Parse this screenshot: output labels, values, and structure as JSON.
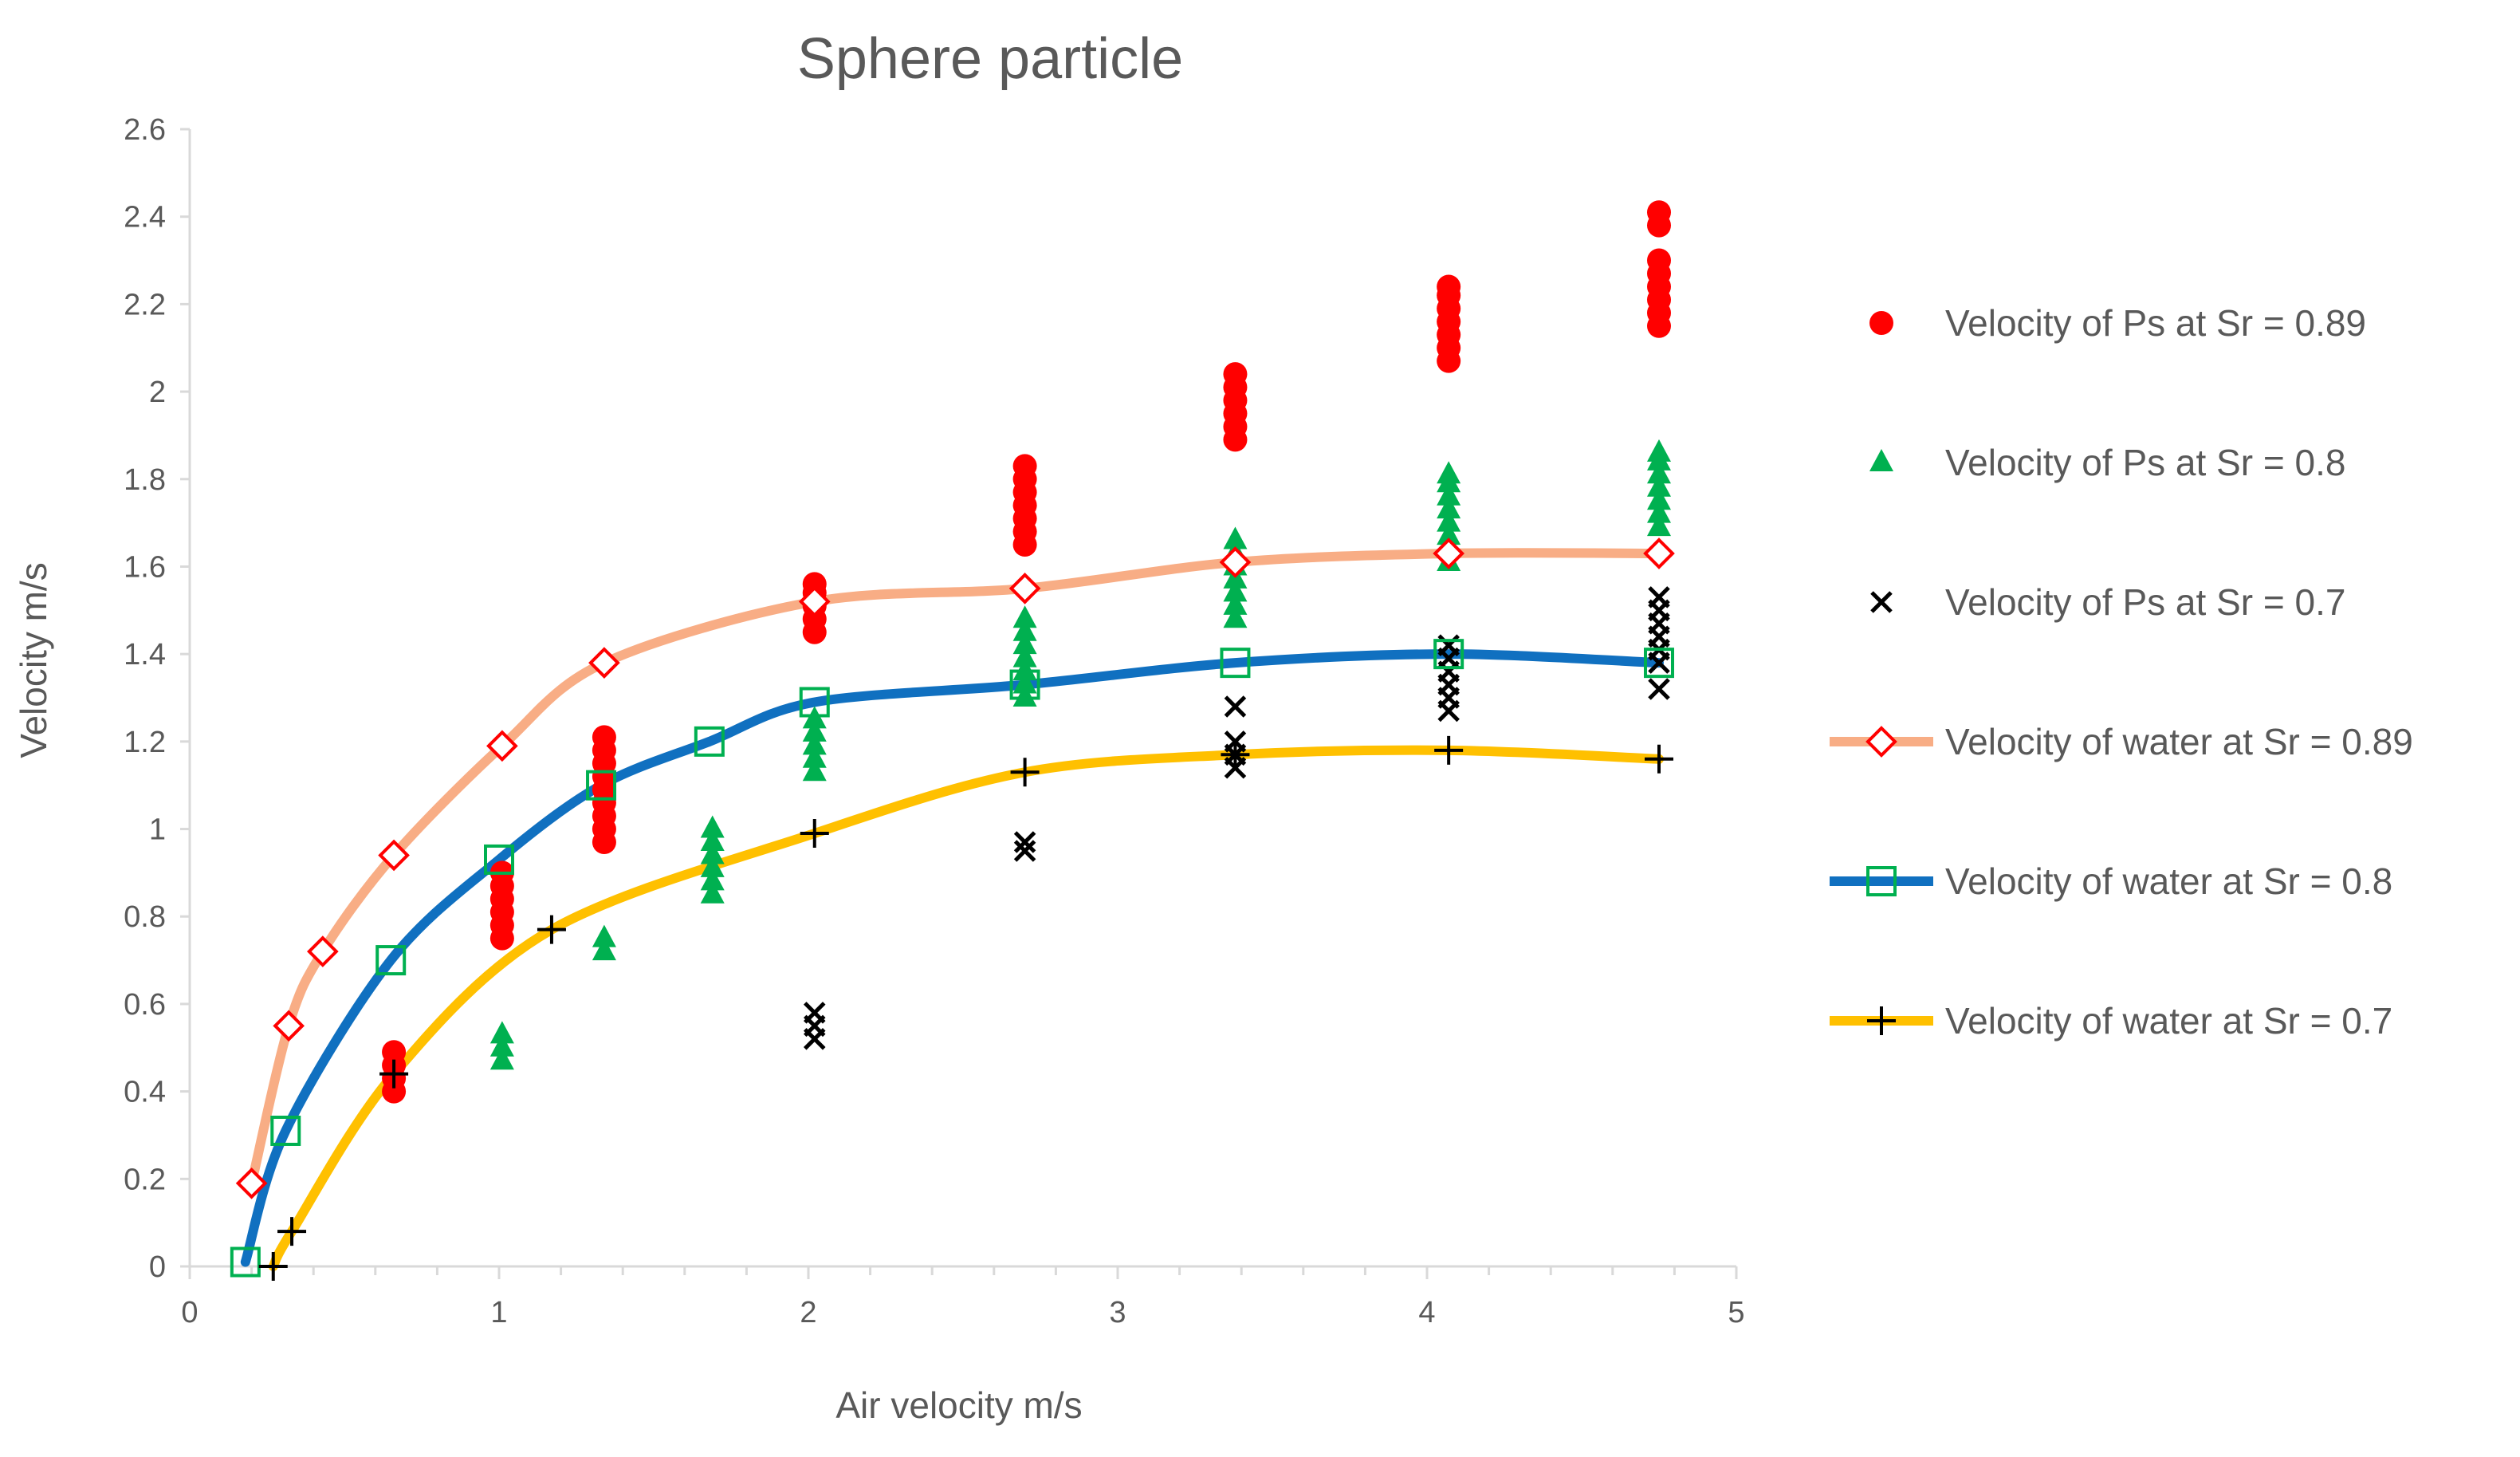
{
  "chart_data": {
    "type": "scatter",
    "title": "Sphere particle",
    "xlabel": "Air velocity m/s",
    "ylabel": "Velocity m/s",
    "xlim": [
      0,
      5
    ],
    "ylim": [
      0,
      2.6
    ],
    "x_ticks": [
      0,
      1,
      2,
      3,
      4,
      5
    ],
    "x_tick_labels": [
      "0",
      "1",
      "2",
      "3",
      "4",
      "5"
    ],
    "y_ticks": [
      0,
      0.2,
      0.4,
      0.6,
      0.8,
      1,
      1.2,
      1.4,
      1.6,
      1.8,
      2,
      2.2,
      2.4,
      2.6
    ],
    "y_tick_labels": [
      "0",
      "0.2",
      "0.4",
      "0.6",
      "0.8",
      "1",
      "1.2",
      "1.4",
      "1.6",
      "1.8",
      "2",
      "2.2",
      "2.4",
      "2.6"
    ],
    "grid": false,
    "legend_position": "right",
    "series": [
      {
        "name": "Velocity of Ps at Sr = 0.89",
        "kind": "scatter",
        "marker": "circle",
        "color": "#ff0000",
        "points": [
          {
            "x": 0.66,
            "y": [
              0.4,
              0.43,
              0.46,
              0.49
            ]
          },
          {
            "x": 1.01,
            "y": [
              0.75,
              0.78,
              0.81,
              0.84,
              0.87,
              0.9
            ]
          },
          {
            "x": 1.34,
            "y": [
              0.97,
              1.0,
              1.03,
              1.06,
              1.09,
              1.12,
              1.15,
              1.18,
              1.21
            ]
          },
          {
            "x": 2.02,
            "y": [
              1.45,
              1.48,
              1.51,
              1.54,
              1.56
            ]
          },
          {
            "x": 2.7,
            "y": [
              1.65,
              1.68,
              1.71,
              1.74,
              1.77,
              1.8,
              1.83
            ]
          },
          {
            "x": 3.38,
            "y": [
              1.89,
              1.92,
              1.95,
              1.98,
              2.01,
              2.04
            ]
          },
          {
            "x": 4.07,
            "y": [
              2.07,
              2.1,
              2.13,
              2.16,
              2.19,
              2.22,
              2.24
            ]
          },
          {
            "x": 4.75,
            "y": [
              2.15,
              2.18,
              2.21,
              2.24,
              2.27,
              2.3,
              2.38,
              2.41
            ]
          }
        ]
      },
      {
        "name": "Velocity of Ps at Sr = 0.8",
        "kind": "scatter",
        "marker": "triangle",
        "color": "#00b050",
        "points": [
          {
            "x": 1.01,
            "y": [
              0.47,
              0.5,
              0.53
            ]
          },
          {
            "x": 1.34,
            "y": [
              0.72,
              0.75
            ]
          },
          {
            "x": 1.69,
            "y": [
              0.85,
              0.88,
              0.91,
              0.94,
              0.97,
              1.0
            ]
          },
          {
            "x": 2.02,
            "y": [
              1.13,
              1.16,
              1.19,
              1.22,
              1.25
            ]
          },
          {
            "x": 2.7,
            "y": [
              1.3,
              1.33,
              1.36,
              1.39,
              1.42,
              1.45,
              1.48
            ]
          },
          {
            "x": 3.38,
            "y": [
              1.48,
              1.51,
              1.54,
              1.57,
              1.6,
              1.63,
              1.66
            ]
          },
          {
            "x": 4.07,
            "y": [
              1.61,
              1.64,
              1.67,
              1.7,
              1.73,
              1.76,
              1.79,
              1.81
            ]
          },
          {
            "x": 4.75,
            "y": [
              1.69,
              1.72,
              1.75,
              1.78,
              1.81,
              1.84,
              1.86
            ]
          }
        ]
      },
      {
        "name": "Velocity of Ps at Sr = 0.7",
        "kind": "scatter",
        "marker": "x",
        "color": "#000000",
        "points": [
          {
            "x": 2.02,
            "y": [
              0.52,
              0.55,
              0.58
            ]
          },
          {
            "x": 2.7,
            "y": [
              0.95,
              0.97
            ]
          },
          {
            "x": 3.38,
            "y": [
              1.14,
              1.17,
              1.2,
              1.28
            ]
          },
          {
            "x": 4.07,
            "y": [
              1.27,
              1.3,
              1.33,
              1.36,
              1.39,
              1.42
            ]
          },
          {
            "x": 4.75,
            "y": [
              1.32,
              1.38,
              1.41,
              1.44,
              1.47,
              1.5,
              1.53
            ]
          }
        ]
      },
      {
        "name": "Velocity of water at Sr = 0.89",
        "kind": "line",
        "marker": "diamond",
        "color": "#f8ad85",
        "marker_color": "#ff0000",
        "x": [
          0.2,
          0.32,
          0.43,
          0.66,
          1.01,
          1.34,
          2.02,
          2.7,
          3.38,
          4.07,
          4.75
        ],
        "y": [
          0.19,
          0.55,
          0.72,
          0.94,
          1.19,
          1.38,
          1.52,
          1.55,
          1.61,
          1.63,
          1.63
        ]
      },
      {
        "name": "Velocity of water at Sr = 0.8",
        "kind": "line",
        "marker": "square",
        "color": "#1070c0",
        "marker_color": "#00b050",
        "x": [
          0.18,
          0.31,
          0.65,
          1.0,
          1.33,
          1.68,
          2.02,
          2.7,
          3.38,
          4.07,
          4.75
        ],
        "y": [
          0.01,
          0.31,
          0.7,
          0.93,
          1.1,
          1.2,
          1.29,
          1.33,
          1.38,
          1.4,
          1.38
        ]
      },
      {
        "name": "Velocity of water at Sr = 0.7",
        "kind": "line",
        "marker": "plus",
        "color": "#ffc000",
        "marker_color": "#000000",
        "x": [
          0.27,
          0.33,
          0.66,
          1.17,
          2.02,
          2.7,
          3.38,
          4.07,
          4.75
        ],
        "y": [
          0.0,
          0.08,
          0.44,
          0.77,
          0.99,
          1.13,
          1.17,
          1.18,
          1.16
        ]
      }
    ]
  }
}
